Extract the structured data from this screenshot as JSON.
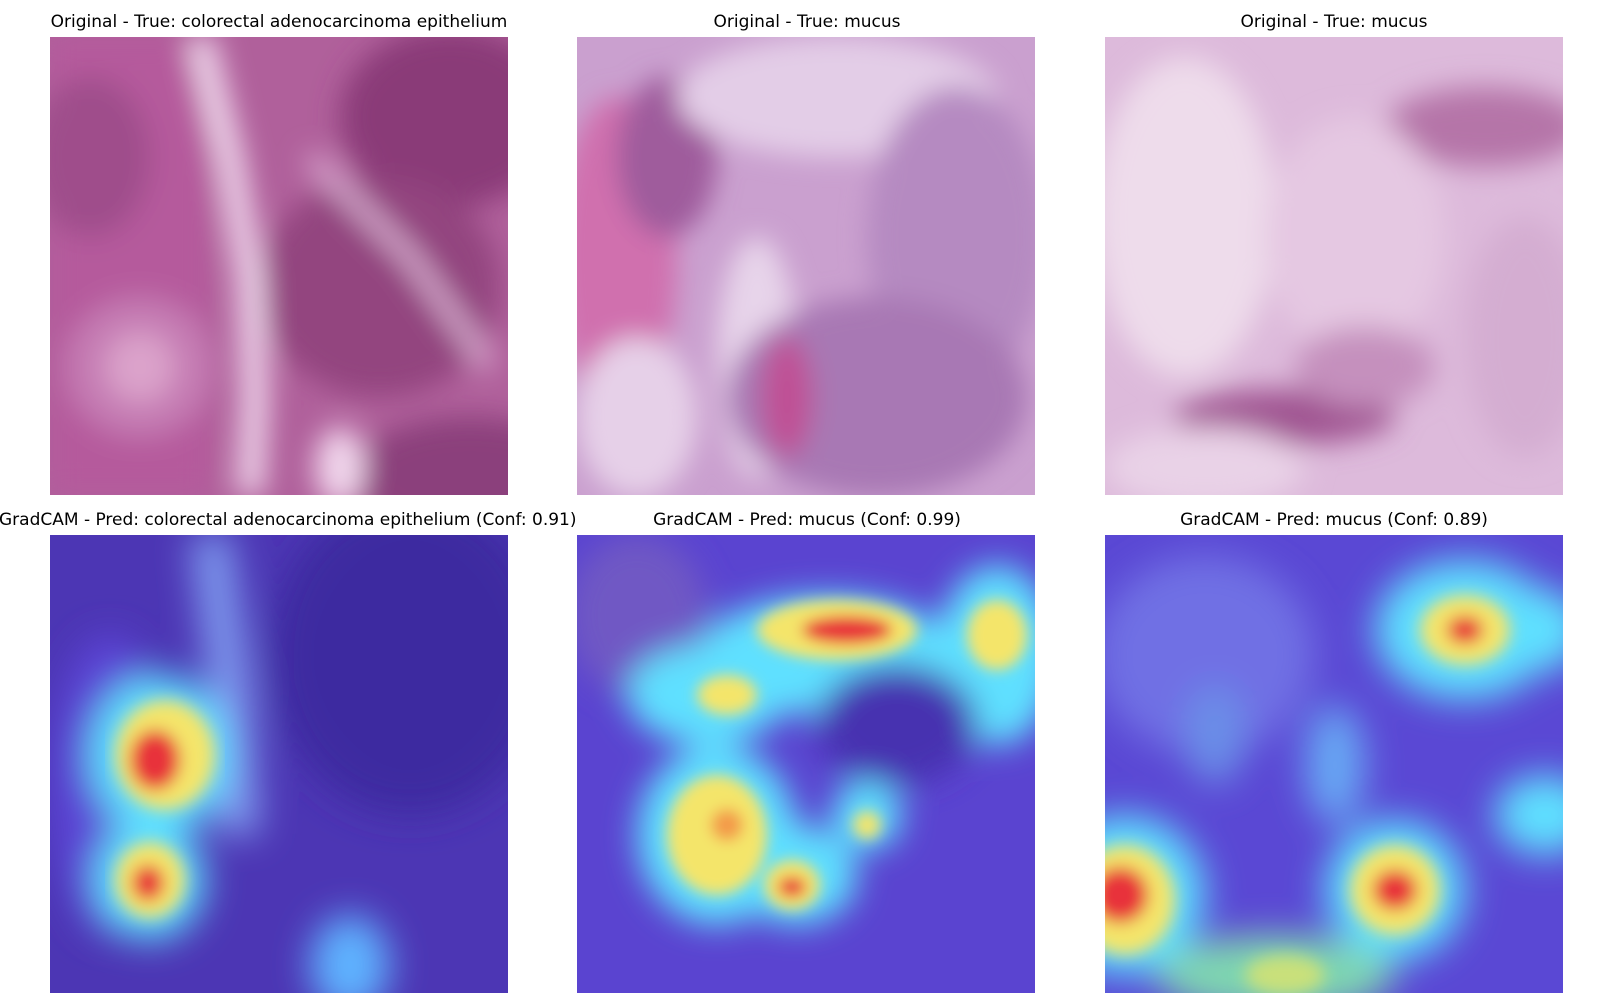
{
  "figure": {
    "panels": [
      {
        "title": "Original - True: colorectal adenocarcinoma epithelium",
        "kind": "tissue",
        "icon": "h-and-e-tissue-image"
      },
      {
        "title": "Original - True: mucus",
        "kind": "tissue",
        "icon": "h-and-e-tissue-image"
      },
      {
        "title": "Original - True: mucus",
        "kind": "tissue",
        "icon": "h-and-e-tissue-image"
      },
      {
        "title": "GradCAM - Pred: colorectal adenocarcinoma epithelium (Conf: 0.91)",
        "kind": "gradcam",
        "icon": "gradcam-heatmap-image"
      },
      {
        "title": "GradCAM - Pred: mucus (Conf: 0.99)",
        "kind": "gradcam",
        "icon": "gradcam-heatmap-image"
      },
      {
        "title": "GradCAM - Pred: mucus (Conf: 0.89)",
        "kind": "gradcam",
        "icon": "gradcam-heatmap-image"
      }
    ],
    "colors": {
      "tissue_dark": "#9b4a86",
      "tissue_light": "#e6c8e2",
      "heat_low": "#4a3cc8",
      "heat_mid": "#5fe3ff",
      "heat_high": "#e8333a",
      "heat_warm": "#f5e56b"
    }
  }
}
